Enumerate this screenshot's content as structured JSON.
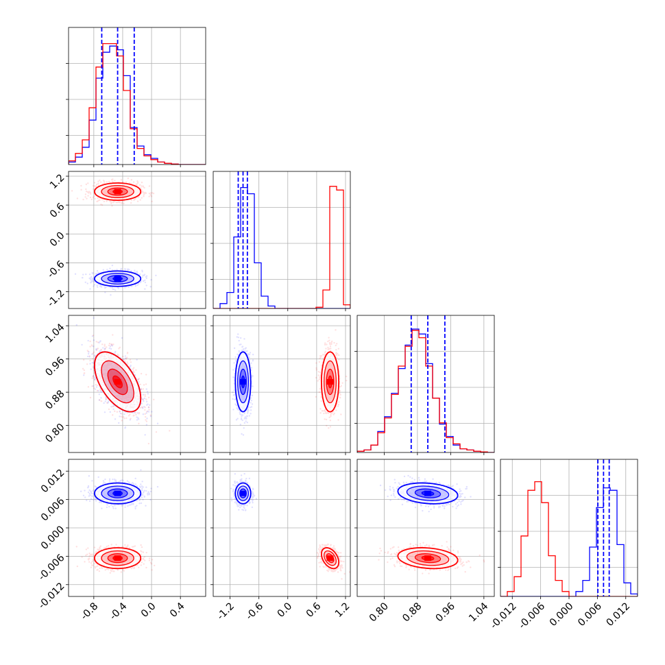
{
  "chart_data": {
    "type": "corner",
    "colors": {
      "blue": "#0000ff",
      "red": "#ff0000",
      "median_lines": "#0000ff"
    },
    "grid": true,
    "legend": "none",
    "n_params": 4,
    "ranges": [
      [
        -1.15,
        0.75
      ],
      [
        -1.55,
        1.3
      ],
      [
        0.735,
        1.065
      ],
      [
        -0.0145,
        0.0145
      ]
    ],
    "x_ticks": [
      [
        "-0.8",
        "-0.4",
        "0.0",
        "0.4"
      ],
      [
        "-1.2",
        "-0.6",
        "0.0",
        "0.6",
        "1.2"
      ],
      [
        "0.80",
        "0.88",
        "0.96",
        "1.04"
      ],
      [
        "-0.012",
        "-0.006",
        "0.000",
        "0.006",
        "0.012"
      ]
    ],
    "x_tick_values": [
      [
        -0.8,
        -0.4,
        0.0,
        0.4
      ],
      [
        -1.2,
        -0.6,
        0.0,
        0.6,
        1.2
      ],
      [
        0.8,
        0.88,
        0.96,
        1.04
      ],
      [
        -0.012,
        -0.006,
        0.0,
        0.006,
        0.012
      ]
    ],
    "y_ticks": [
      [
        "1.2",
        "0.6",
        "0.0",
        "-0.6",
        "-1.2"
      ],
      [
        "1.04",
        "0.96",
        "0.88",
        "0.80"
      ],
      [
        "0.012",
        "0.006",
        "0.000",
        "-0.006",
        "-0.012"
      ]
    ],
    "y_tick_values": [
      [
        1.2,
        0.6,
        0.0,
        -0.6,
        -1.2
      ],
      [
        1.04,
        0.96,
        0.88,
        0.8
      ],
      [
        0.012,
        0.006,
        0.0,
        -0.006,
        -0.012
      ]
    ],
    "series": [
      {
        "color": "blue",
        "means": [
          -0.47,
          -0.93,
          0.905,
          0.0073
        ],
        "sds": [
          0.16,
          0.08,
          0.036,
          0.0011
        ],
        "correlations": {
          "1_0": 0.0,
          "2_0": -0.55,
          "2_1": 0.0,
          "3_0": 0.0,
          "3_1": 0.0,
          "3_2": -0.2
        }
      },
      {
        "color": "red",
        "means": [
          -0.47,
          0.88,
          0.905,
          -0.0064
        ],
        "sds": [
          0.16,
          0.09,
          0.036,
          0.0011
        ],
        "correlations": {
          "1_0": 0.0,
          "2_0": -0.55,
          "2_1": 0.0,
          "3_0": 0.0,
          "3_1": -0.4,
          "3_2": -0.2
        }
      }
    ],
    "quantile_lines": [
      [
        -0.69,
        -0.47,
        -0.24
      ],
      [
        -1.03,
        -0.93,
        -0.84
      ],
      [
        0.865,
        0.905,
        0.946
      ],
      [
        0.0061,
        0.0073,
        0.0085
      ]
    ],
    "histograms": [
      {
        "bins": [
          -1.15,
          0.75
        ],
        "nbins": 20,
        "blue": [
          0.02,
          0.06,
          0.14,
          0.36,
          0.7,
          0.91,
          0.96,
          0.93,
          0.72,
          0.3,
          0.15,
          0.08,
          0.05,
          0.02,
          0.01,
          0.004,
          0,
          0,
          0,
          0
        ],
        "red": [
          0.03,
          0.09,
          0.2,
          0.46,
          0.79,
          0.98,
          0.98,
          0.88,
          0.6,
          0.29,
          0.13,
          0.07,
          0.04,
          0.02,
          0.01,
          0.004,
          0,
          0,
          0,
          0
        ]
      },
      {
        "bins": [
          -1.55,
          1.3
        ],
        "nbins": 20,
        "blue": [
          0,
          0.04,
          0.13,
          0.58,
          0.98,
          0.93,
          0.37,
          0.1,
          0.02,
          0,
          0,
          0,
          0,
          0,
          0,
          0,
          0,
          0,
          0,
          0
        ],
        "red": [
          0,
          0,
          0,
          0,
          0,
          0,
          0,
          0,
          0,
          0,
          0,
          0,
          0,
          0,
          0,
          0.01,
          0.15,
          0.99,
          0.96,
          0.03
        ]
      },
      {
        "bins": [
          0.735,
          1.065
        ],
        "nbins": 20,
        "blue": [
          0.01,
          0.02,
          0.06,
          0.17,
          0.29,
          0.48,
          0.68,
          0.87,
          1.0,
          0.96,
          0.72,
          0.44,
          0.23,
          0.13,
          0.06,
          0.03,
          0.02,
          0.01,
          0.005,
          0
        ],
        "red": [
          0.01,
          0.02,
          0.06,
          0.16,
          0.28,
          0.47,
          0.7,
          0.86,
          0.99,
          0.93,
          0.7,
          0.44,
          0.24,
          0.12,
          0.07,
          0.03,
          0.02,
          0.01,
          0.005,
          0
        ]
      },
      {
        "bins": [
          -0.0145,
          0.0145
        ],
        "nbins": 20,
        "blue": [
          0,
          0,
          0,
          0,
          0,
          0,
          0,
          0,
          0,
          0,
          0,
          0.04,
          0.13,
          0.4,
          0.72,
          0.88,
          0.86,
          0.42,
          0.11,
          0.02
        ],
        "red": [
          0,
          0.04,
          0.16,
          0.49,
          0.86,
          0.93,
          0.76,
          0.33,
          0.13,
          0.04,
          0,
          0,
          0,
          0,
          0,
          0,
          0,
          0,
          0,
          0
        ]
      }
    ]
  }
}
